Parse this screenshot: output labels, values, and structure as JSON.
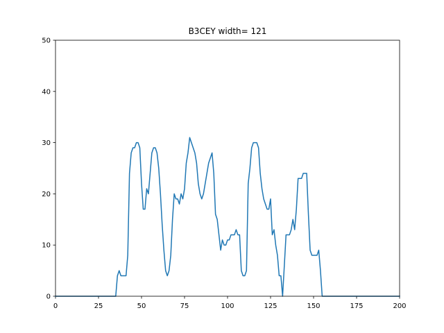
{
  "chart_data": {
    "type": "line",
    "title": "B3CEY width= 121",
    "xlabel": "",
    "ylabel": "",
    "xlim": [
      0,
      200
    ],
    "ylim": [
      0,
      50
    ],
    "x_ticks": [
      0,
      25,
      50,
      75,
      100,
      125,
      150,
      175,
      200
    ],
    "y_ticks": [
      0,
      10,
      20,
      30,
      40,
      50
    ],
    "grid": false,
    "legend": "none",
    "line_color": "#1f77b4",
    "series": [
      {
        "x": [
          0,
          34,
          35,
          36,
          37,
          38,
          39,
          40,
          41,
          42,
          43,
          44,
          45,
          46,
          47,
          48,
          49,
          50,
          51,
          52,
          53,
          54,
          55,
          56,
          57,
          58,
          59,
          60,
          61,
          62,
          63,
          64,
          65,
          66,
          67,
          68,
          69,
          70,
          71,
          72,
          73,
          74,
          75,
          76,
          77,
          78,
          79,
          80,
          81,
          82,
          83,
          84,
          85,
          86,
          87,
          88,
          89,
          90,
          91,
          92,
          93,
          94,
          95,
          96,
          97,
          98,
          99,
          100,
          101,
          102,
          103,
          104,
          105,
          106,
          107,
          108,
          109,
          110,
          111,
          112,
          113,
          114,
          115,
          116,
          117,
          118,
          119,
          120,
          121,
          122,
          123,
          124,
          125,
          126,
          127,
          128,
          129,
          130,
          131,
          132,
          133,
          134,
          135,
          136,
          137,
          138,
          139,
          140,
          141,
          142,
          143,
          144,
          145,
          146,
          147,
          148,
          149,
          150,
          151,
          152,
          153,
          154,
          155,
          156,
          157,
          200
        ],
        "values": [
          0,
          0,
          0,
          4,
          5,
          4,
          4,
          4,
          4,
          8,
          24,
          28,
          29,
          29,
          30,
          30,
          29,
          22,
          17,
          17,
          21,
          20,
          24,
          28,
          29,
          29,
          28,
          25,
          20,
          14,
          9,
          5,
          4,
          5,
          8,
          15,
          20,
          19,
          19,
          18,
          20,
          19,
          21,
          26,
          28,
          31,
          30,
          29,
          28,
          26,
          22,
          20,
          19,
          20,
          22,
          24,
          26,
          27,
          28,
          24,
          16,
          15,
          12,
          9,
          11,
          10,
          10,
          11,
          11,
          12,
          12,
          12,
          13,
          12,
          12,
          5,
          4,
          4,
          5,
          22,
          25,
          29,
          30,
          30,
          30,
          29,
          24,
          21,
          19,
          18,
          17,
          17,
          19,
          12,
          13,
          10,
          8,
          4,
          4,
          0,
          6,
          12,
          12,
          12,
          13,
          15,
          13,
          17,
          23,
          23,
          23,
          24,
          24,
          24,
          16,
          9,
          8,
          8,
          8,
          8,
          9,
          5,
          0,
          0,
          0,
          0
        ]
      }
    ]
  }
}
